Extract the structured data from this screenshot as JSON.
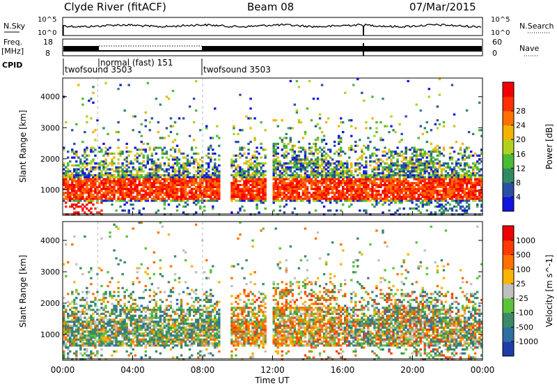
{
  "header": {
    "station": "Clyde River (fitACF)",
    "beam": "Beam 08",
    "date": "07/Mar/2015"
  },
  "top_panels": {
    "nsky_label": "N.Sky",
    "nsky_ticks": [
      "10^5",
      "10^0"
    ],
    "nsearch_label": "N.Search",
    "nsearch_ticks": [
      "10^5",
      "10^0"
    ],
    "freq_label": "Freq.",
    "freq_unit": "[MHz]",
    "freq_ticks": [
      "18",
      "8"
    ],
    "nave_label": "Nave",
    "nave_ticks": [
      "60",
      "0"
    ],
    "cpid_label": "CPID",
    "cpid_segments": [
      {
        "label": "twofsound 3503",
        "start_hour": 0,
        "end_hour": 2
      },
      {
        "label": "normal (fast) 151",
        "start_hour": 2,
        "end_hour": 8
      },
      {
        "label": "twofsound 3503",
        "start_hour": 8,
        "end_hour": 24
      }
    ]
  },
  "chart_data": [
    {
      "type": "heatmap",
      "title": "",
      "ylabel": "Slant Range [km]",
      "yticks": [
        "1000",
        "2000",
        "3000",
        "4000"
      ],
      "ylim": [
        180,
        4600
      ],
      "xlim": [
        0,
        24
      ],
      "colorbar": {
        "label": "Power [dB]",
        "ticks": [
          "4",
          "8",
          "12",
          "16",
          "20",
          "24",
          "28"
        ],
        "colors": [
          "#1414e0",
          "#2a4fa6",
          "#2f8a64",
          "#4bbb34",
          "#b2d11e",
          "#f2b400",
          "#ff7000",
          "#ff3000",
          "#f40000"
        ]
      }
    },
    {
      "type": "heatmap",
      "title": "",
      "ylabel": "Slant Range [km]",
      "yticks": [
        "1000",
        "2000",
        "3000",
        "4000"
      ],
      "ylim": [
        180,
        4600
      ],
      "xlim": [
        0,
        24
      ],
      "xlabel": "Time UT",
      "xticks": [
        "00:00",
        "04:00",
        "08:00",
        "12:00",
        "16:00",
        "20:00",
        "00:00"
      ],
      "colorbar": {
        "label": "Velocity [m s^-1]",
        "ticks": [
          "1000",
          "500",
          "100",
          "25",
          "-25",
          "-100",
          "-500",
          "-1000"
        ],
        "colors": [
          "#1e3ca8",
          "#2f6fa0",
          "#3b8a66",
          "#5cc23a",
          "#c0c0c0",
          "#f7b400",
          "#ff7000",
          "#ff3a00",
          "#ee0000"
        ]
      }
    }
  ]
}
